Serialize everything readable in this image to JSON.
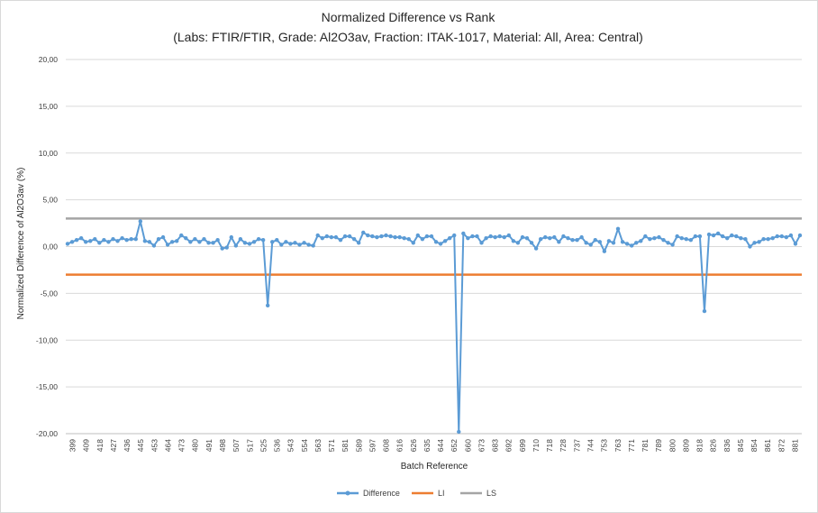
{
  "chart_data": {
    "type": "line",
    "title": "Normalized Difference vs Rank",
    "subtitle": "(Labs: FTIR/FTIR, Grade: Al2O3av, Fraction: ITAK-1017, Material: All, Area: Central)",
    "xlabel": "Batch Reference",
    "ylabel": "Normalized Difference of Al2O3av (%)",
    "ylim": [
      -20,
      20
    ],
    "yticks": [
      "20,00",
      "15,00",
      "10,00",
      "5,00",
      "0,00",
      "-5,00",
      "-10,00",
      "-15,00",
      "-20,00"
    ],
    "grid": true,
    "legend_position": "bottom",
    "x_tick_labels": [
      "399",
      "409",
      "418",
      "427",
      "436",
      "445",
      "453",
      "464",
      "473",
      "480",
      "491",
      "498",
      "507",
      "517",
      "525",
      "536",
      "543",
      "554",
      "563",
      "571",
      "581",
      "589",
      "597",
      "608",
      "616",
      "626",
      "635",
      "644",
      "652",
      "660",
      "673",
      "683",
      "692",
      "699",
      "710",
      "718",
      "728",
      "737",
      "744",
      "753",
      "763",
      "771",
      "781",
      "789",
      "800",
      "809",
      "818",
      "826",
      "836",
      "845",
      "854",
      "861",
      "872",
      "881"
    ],
    "series": [
      {
        "name": "Difference",
        "color": "#5b9bd5",
        "values": [
          0.3,
          0.5,
          0.7,
          0.9,
          0.5,
          0.6,
          0.8,
          0.4,
          0.7,
          0.5,
          0.8,
          0.6,
          0.9,
          0.7,
          0.8,
          0.8,
          2.7,
          0.6,
          0.5,
          0.1,
          0.8,
          1.0,
          0.2,
          0.5,
          0.6,
          1.2,
          0.9,
          0.5,
          0.8,
          0.5,
          0.8,
          0.4,
          0.4,
          0.7,
          -0.2,
          -0.1,
          1.0,
          0.1,
          0.8,
          0.4,
          0.3,
          0.5,
          0.8,
          0.7,
          -6.3,
          0.5,
          0.7,
          0.2,
          0.5,
          0.3,
          0.4,
          0.2,
          0.4,
          0.2,
          0.1,
          1.2,
          0.9,
          1.1,
          1.0,
          1.0,
          0.7,
          1.1,
          1.1,
          0.8,
          0.4,
          1.5,
          1.2,
          1.1,
          1.0,
          1.1,
          1.2,
          1.1,
          1.0,
          1.0,
          0.9,
          0.8,
          0.4,
          1.2,
          0.8,
          1.1,
          1.1,
          0.5,
          0.3,
          0.6,
          0.9,
          1.2,
          -19.8,
          1.4,
          0.9,
          1.1,
          1.1,
          0.4,
          0.9,
          1.1,
          1.0,
          1.1,
          1.0,
          1.2,
          0.6,
          0.4,
          1.0,
          0.9,
          0.4,
          -0.2,
          0.8,
          1.0,
          0.9,
          1.0,
          0.5,
          1.1,
          0.9,
          0.7,
          0.7,
          1.0,
          0.4,
          0.2,
          0.7,
          0.5,
          -0.5,
          0.6,
          0.4,
          1.9,
          0.5,
          0.3,
          0.1,
          0.4,
          0.6,
          1.1,
          0.8,
          0.9,
          1.0,
          0.7,
          0.4,
          0.2,
          1.1,
          0.9,
          0.8,
          0.7,
          1.1,
          1.1,
          -6.9,
          1.3,
          1.2,
          1.4,
          1.1,
          0.9,
          1.2,
          1.1,
          0.9,
          0.8,
          0.0,
          0.4,
          0.5,
          0.8,
          0.8,
          0.9,
          1.1,
          1.1,
          1.0,
          1.2,
          0.3,
          1.2
        ]
      },
      {
        "name": "LI",
        "color": "#ed7d31",
        "values": [
          -3,
          -3
        ]
      },
      {
        "name": "LS",
        "color": "#a5a5a5",
        "values": [
          3,
          3
        ]
      }
    ]
  }
}
